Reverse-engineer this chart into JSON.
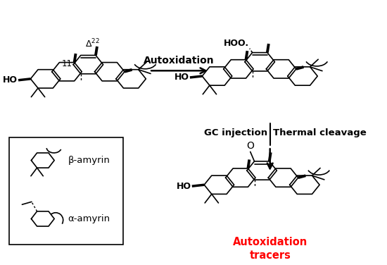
{
  "bg_color": "#ffffff",
  "text_autoxidation": "Autoxidation",
  "text_gc_injection": "GC injection",
  "text_thermal": "Thermal cleavage",
  "text_tracers_line1": "Autoxidation",
  "text_tracers_line2": "tracers",
  "text_tracers_color": "#ff0000",
  "text_beta": "β-amyrin",
  "text_alpha": "α-amyrin",
  "figsize": [
    5.5,
    3.76
  ],
  "dpi": 100
}
